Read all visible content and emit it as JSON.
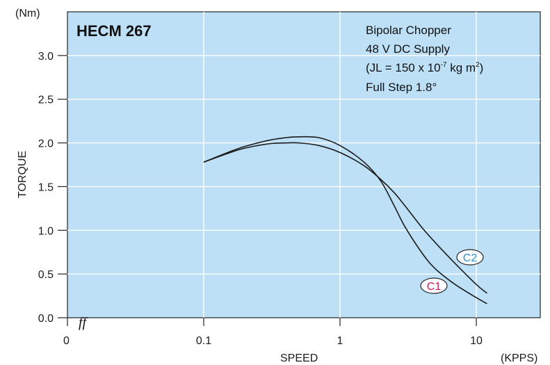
{
  "chart_data": {
    "type": "line",
    "title": "HECM 267",
    "annotations": [
      "Bipolar Chopper",
      "48 V DC Supply",
      "Full Step 1.8°"
    ],
    "inertia_note": {
      "prefix": "(JL = 150 x 10",
      "exp": "-7",
      "mid": " kg m",
      "exp2": "2",
      "suffix": ")"
    },
    "xlabel": "SPEED",
    "xunit": "(KPPS)",
    "ylabel": "TORQUE",
    "yunit": "(Nm)",
    "x_scale": "log",
    "x_ticks": [
      {
        "value": 0.1,
        "label": "0.1"
      },
      {
        "value": 1,
        "label": "1"
      },
      {
        "value": 10,
        "label": "10"
      }
    ],
    "x_origin_label": "0",
    "axis_break_label": "ff",
    "y_ticks": [
      {
        "value": 0,
        "label": "0.0"
      },
      {
        "value": 0.5,
        "label": "0.5"
      },
      {
        "value": 1,
        "label": "1.0"
      },
      {
        "value": 1.5,
        "label": "1.5"
      },
      {
        "value": 2,
        "label": "2.0"
      },
      {
        "value": 2.5,
        "label": "2.5"
      },
      {
        "value": 3,
        "label": "3.0"
      }
    ],
    "ylim": [
      0,
      3.5
    ],
    "grid": true,
    "series": [
      {
        "name": "C1",
        "color": "#d4145a",
        "x": [
          0.1,
          0.15,
          0.2,
          0.3,
          0.4,
          0.5,
          0.7,
          1.0,
          1.5,
          2.0,
          2.5,
          3.0,
          4.0,
          5.0,
          7.0,
          10.0,
          12.0
        ],
        "y": [
          1.78,
          1.89,
          1.96,
          2.03,
          2.06,
          2.07,
          2.06,
          1.97,
          1.78,
          1.56,
          1.28,
          1.04,
          0.74,
          0.56,
          0.38,
          0.23,
          0.16
        ]
      },
      {
        "name": "C2",
        "color": "#2b8fd6",
        "x": [
          0.1,
          0.15,
          0.2,
          0.3,
          0.4,
          0.5,
          0.7,
          1.0,
          1.5,
          2.0,
          2.5,
          3.0,
          4.0,
          5.0,
          7.0,
          10.0,
          12.0
        ],
        "y": [
          1.78,
          1.88,
          1.94,
          1.99,
          2.0,
          2.0,
          1.97,
          1.89,
          1.74,
          1.58,
          1.43,
          1.28,
          1.03,
          0.86,
          0.62,
          0.38,
          0.28
        ]
      }
    ]
  }
}
